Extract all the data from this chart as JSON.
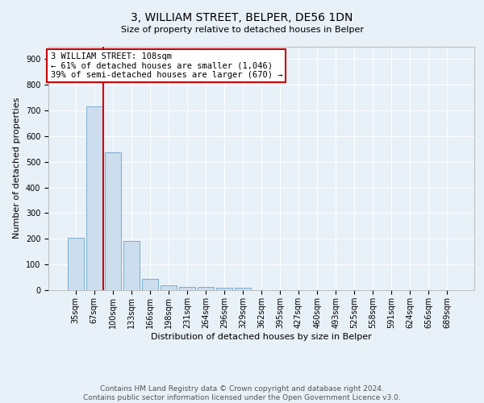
{
  "title": "3, WILLIAM STREET, BELPER, DE56 1DN",
  "subtitle": "Size of property relative to detached houses in Belper",
  "xlabel": "Distribution of detached houses by size in Belper",
  "ylabel": "Number of detached properties",
  "categories": [
    "35sqm",
    "67sqm",
    "100sqm",
    "133sqm",
    "166sqm",
    "198sqm",
    "231sqm",
    "264sqm",
    "296sqm",
    "329sqm",
    "362sqm",
    "395sqm",
    "427sqm",
    "460sqm",
    "493sqm",
    "525sqm",
    "558sqm",
    "591sqm",
    "624sqm",
    "656sqm",
    "689sqm"
  ],
  "values": [
    203,
    715,
    538,
    193,
    44,
    19,
    14,
    11,
    8,
    8,
    0,
    0,
    0,
    0,
    0,
    0,
    0,
    0,
    0,
    0,
    0
  ],
  "bar_color": "#ccdded",
  "bar_edge_color": "#7baed4",
  "vline_x_index": 2,
  "vline_color": "#cc0000",
  "annotation_line1": "3 WILLIAM STREET: 108sqm",
  "annotation_line2": "← 61% of detached houses are smaller (1,046)",
  "annotation_line3": "39% of semi-detached houses are larger (670) →",
  "annotation_box_color": "#ffffff",
  "annotation_box_edge_color": "#cc0000",
  "ylim": [
    0,
    950
  ],
  "yticks": [
    0,
    100,
    200,
    300,
    400,
    500,
    600,
    700,
    800,
    900
  ],
  "footer1": "Contains HM Land Registry data © Crown copyright and database right 2024.",
  "footer2": "Contains public sector information licensed under the Open Government Licence v3.0.",
  "background_color": "#e8f0f8",
  "plot_background_color": "#e8f0f8",
  "grid_color": "#ffffff",
  "title_fontsize": 10,
  "axis_fontsize": 8,
  "tick_fontsize": 7,
  "annotation_fontsize": 7.5,
  "footer_fontsize": 6.5
}
